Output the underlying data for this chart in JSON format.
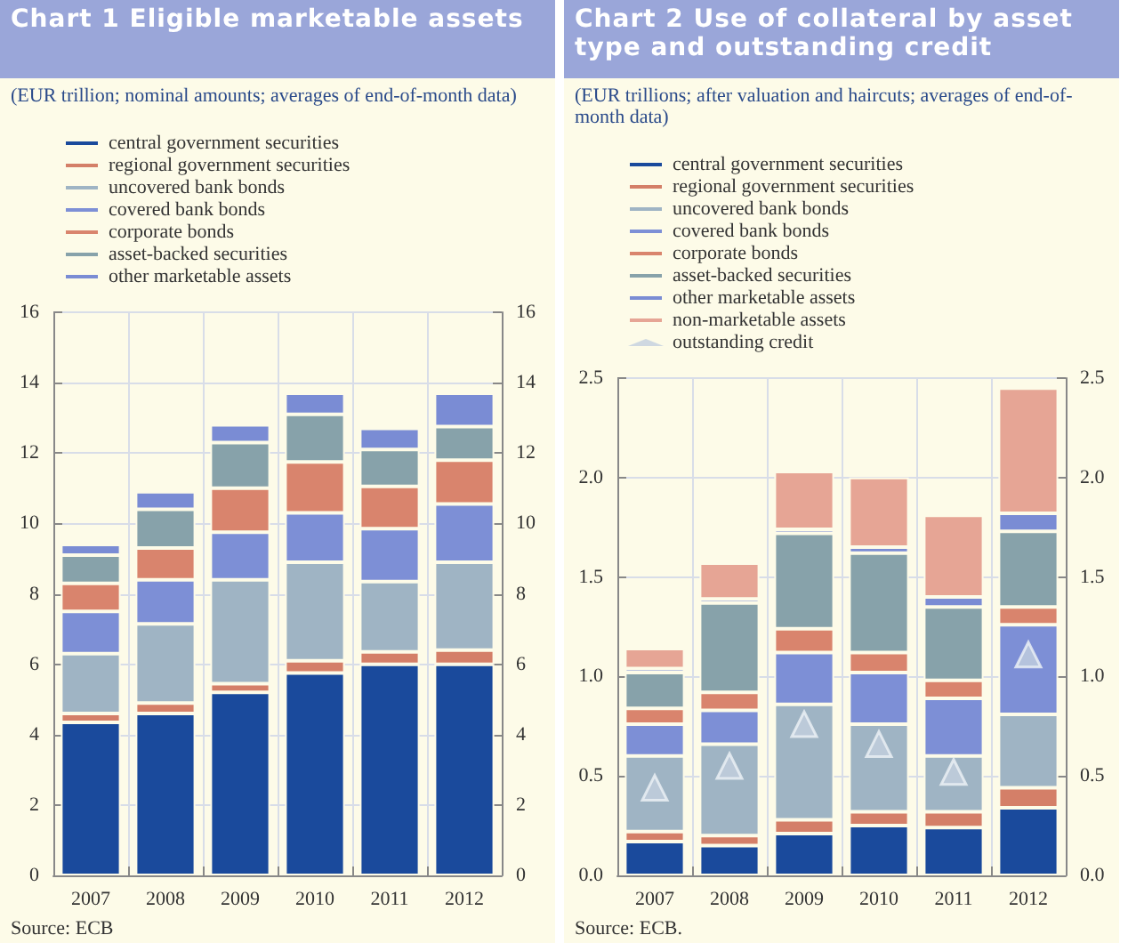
{
  "chart_data": [
    {
      "type": "bar",
      "title": "Chart 1 Eligible marketable assets",
      "subtitle": "(EUR trillion; nominal amounts; averages of end-of-month data)",
      "annotations": [
        "Source: ECB"
      ],
      "categories": [
        "2007",
        "2008",
        "2009",
        "2010",
        "2011",
        "2012"
      ],
      "stacked": true,
      "grid": true,
      "legend": "top left",
      "ylim": [
        0,
        16
      ],
      "yticks": [
        0,
        2,
        4,
        6,
        8,
        10,
        12,
        14,
        16
      ],
      "y2lim": [
        0,
        16
      ],
      "y2ticks": [
        0,
        2,
        4,
        6,
        8,
        10,
        12,
        14,
        16
      ],
      "series": [
        {
          "name": "central government securities",
          "color": "#1a4a9c",
          "values": [
            4.35,
            4.6,
            5.2,
            5.75,
            6.0,
            6.0
          ]
        },
        {
          "name": "regional government securities",
          "color": "#d47f68",
          "values": [
            0.25,
            0.3,
            0.25,
            0.35,
            0.35,
            0.4
          ]
        },
        {
          "name": "uncovered bank bonds",
          "color": "#9fb4c4",
          "values": [
            1.7,
            2.25,
            2.95,
            2.8,
            2.0,
            2.5
          ]
        },
        {
          "name": "covered bank bonds",
          "color": "#7d8fd6",
          "values": [
            1.2,
            1.25,
            1.35,
            1.4,
            1.5,
            1.65
          ]
        },
        {
          "name": "corporate bonds",
          "color": "#d9846d",
          "values": [
            0.8,
            0.9,
            1.25,
            1.45,
            1.2,
            1.25
          ]
        },
        {
          "name": "asset-backed securities",
          "color": "#87a2aa",
          "values": [
            0.8,
            1.1,
            1.3,
            1.35,
            1.05,
            0.95
          ]
        },
        {
          "name": "other marketable assets",
          "color": "#7a8cd4",
          "values": [
            0.3,
            0.5,
            0.5,
            0.6,
            0.6,
            0.95
          ]
        }
      ]
    },
    {
      "type": "bar",
      "title": "Chart 2 Use of collateral by asset type and outstanding credit",
      "subtitle": "(EUR trillions; after valuation and haircuts; averages of end-of-month data)",
      "annotations": [
        "Source: ECB."
      ],
      "categories": [
        "2007",
        "2008",
        "2009",
        "2010",
        "2011",
        "2012"
      ],
      "stacked": true,
      "grid": true,
      "legend": "top left",
      "ylim": [
        0,
        2.5
      ],
      "yticks": [
        {
          "value": 0,
          "label": "0.0"
        },
        0.5,
        {
          "value": 1,
          "label": "1.0"
        },
        1.5,
        {
          "value": 2,
          "label": "2.0"
        },
        2.5
      ],
      "y2lim": [
        0,
        2.5
      ],
      "y2ticks": [
        {
          "value": 0,
          "label": "0.0"
        },
        0.5,
        {
          "value": 1,
          "label": "1.0"
        },
        1.5,
        {
          "value": 2,
          "label": "2.0"
        },
        2.5
      ],
      "series": [
        {
          "name": "central government securities",
          "color": "#1a4a9c",
          "values": [
            0.17,
            0.15,
            0.21,
            0.25,
            0.24,
            0.34
          ]
        },
        {
          "name": "regional government securities",
          "color": "#d47f68",
          "values": [
            0.05,
            0.05,
            0.07,
            0.07,
            0.08,
            0.1
          ]
        },
        {
          "name": "uncovered bank bonds",
          "color": "#9fb4c4",
          "values": [
            0.38,
            0.46,
            0.58,
            0.44,
            0.28,
            0.37
          ]
        },
        {
          "name": "covered bank bonds",
          "color": "#7d8fd6",
          "values": [
            0.16,
            0.17,
            0.26,
            0.26,
            0.29,
            0.45
          ]
        },
        {
          "name": "corporate bonds",
          "color": "#d9846d",
          "values": [
            0.08,
            0.09,
            0.12,
            0.1,
            0.09,
            0.09
          ]
        },
        {
          "name": "asset-backed securities",
          "color": "#87a2aa",
          "values": [
            0.18,
            0.45,
            0.48,
            0.5,
            0.37,
            0.38
          ]
        },
        {
          "name": "other marketable assets",
          "color": "#7a8cd4",
          "values": [
            0.02,
            0.02,
            0.02,
            0.03,
            0.05,
            0.09
          ]
        },
        {
          "name": "non-marketable assets",
          "color": "#e6a595",
          "values": [
            0.1,
            0.18,
            0.29,
            0.35,
            0.41,
            0.63
          ]
        },
        {
          "name": "outstanding credit",
          "type": "scatter",
          "marker": "triangle",
          "color": "#c3d0de",
          "values": [
            0.44,
            0.55,
            0.76,
            0.66,
            0.52,
            1.11
          ]
        }
      ]
    }
  ]
}
